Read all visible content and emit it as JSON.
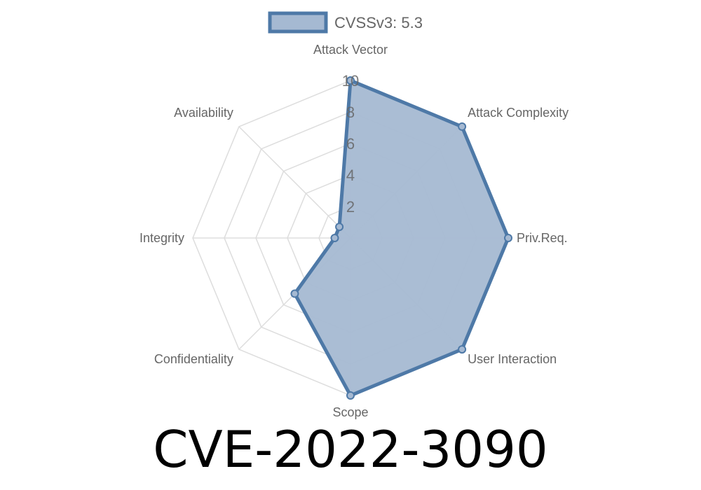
{
  "chart_data": {
    "type": "radar",
    "title": "CVE-2022-3090",
    "axes": [
      "Attack Vector",
      "Attack Complexity",
      "Priv.Req.",
      "User Interaction",
      "Scope",
      "Confidentiality",
      "Integrity",
      "Availability"
    ],
    "series": [
      {
        "name": "CVSSv3: 5.3",
        "values": [
          10,
          10,
          10,
          10,
          10,
          5,
          1,
          1
        ]
      }
    ],
    "rlim": [
      0,
      10
    ],
    "ticks": [
      "2",
      "4",
      "6",
      "8",
      "10"
    ],
    "tick_values": [
      2,
      4,
      6,
      8,
      10
    ],
    "legend_position": "top",
    "grid": true,
    "colors": {
      "line": "#4e79a7",
      "fill": "#a5b9d2",
      "grid": "#dddddd"
    }
  }
}
